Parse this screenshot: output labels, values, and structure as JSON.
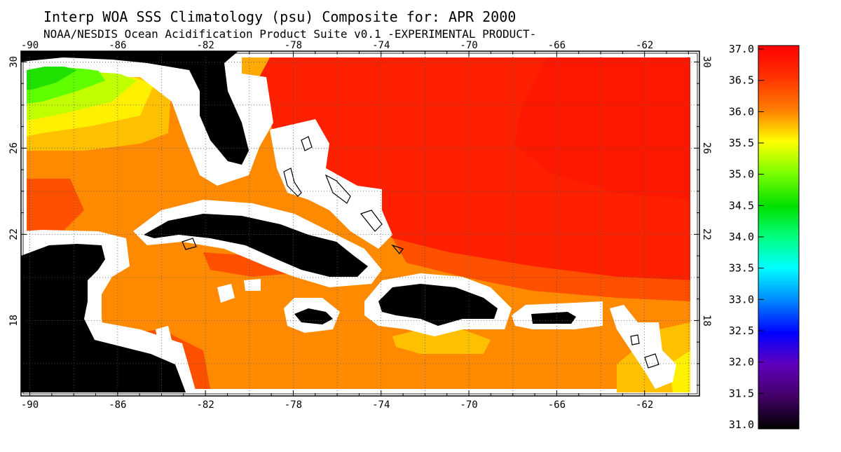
{
  "title": "Interp WOA SSS Climatology (psu) Composite for: APR 2000",
  "subtitle": "NOAA/NESDIS Ocean Acidification Product Suite  v0.1 -EXPERIMENTAL PRODUCT-",
  "axes": {
    "lon_ticks": [
      -90,
      -86,
      -82,
      -78,
      -74,
      -70,
      -66,
      -62
    ],
    "lat_ticks": [
      30,
      26,
      22,
      18
    ],
    "lon_range": [
      -90.4,
      -59.5
    ],
    "lat_range": [
      14.5,
      30.5
    ]
  },
  "colorbar": {
    "ticks": [
      "37.0",
      "36.5",
      "36.0",
      "35.5",
      "35.0",
      "34.5",
      "34.0",
      "33.5",
      "33.0",
      "32.5",
      "32.0",
      "31.5",
      "31.0"
    ],
    "min": 31.0,
    "max": 37.0
  },
  "colors": {
    "land": "#000000",
    "coast_mask": "#ffffff",
    "sss_36_5": "#ff2000",
    "sss_36_2": "#ff5000",
    "sss_36_0": "#ff8a00",
    "sss_35_7": "#ffc000",
    "sss_35_5": "#fff000"
  }
}
